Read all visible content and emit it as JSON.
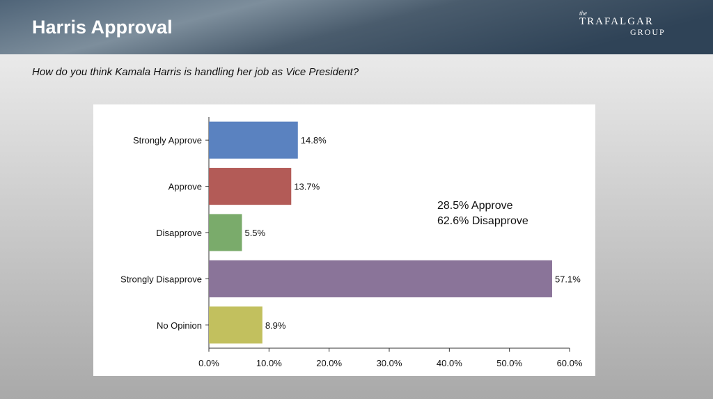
{
  "header": {
    "title": "Harris Approval",
    "logo": {
      "small": "the",
      "top": "TRAFALGAR",
      "bottom": "GROUP"
    }
  },
  "chart_data": {
    "type": "bar",
    "orientation": "horizontal",
    "subtitle": "How do you think Kamala Harris is handling her job as Vice President?",
    "categories": [
      "Strongly Approve",
      "Approve",
      "Disapprove",
      "Strongly Disapprove",
      "No Opinion"
    ],
    "values": [
      14.8,
      13.7,
      5.5,
      57.1,
      8.9
    ],
    "value_labels": [
      "14.8%",
      "13.7%",
      "5.5%",
      "57.1%",
      "8.9%"
    ],
    "colors": [
      "#5a82c0",
      "#b35b57",
      "#7aab6b",
      "#8a7499",
      "#c2c05e"
    ],
    "xlim": [
      0,
      60
    ],
    "xticks": [
      {
        "value": 0,
        "label": "0.0%"
      },
      {
        "value": 10,
        "label": "10.0%"
      },
      {
        "value": 20,
        "label": "20.0%"
      },
      {
        "value": 30,
        "label": "30.0%"
      },
      {
        "value": 40,
        "label": "40.0%"
      },
      {
        "value": 50,
        "label": "50.0%"
      },
      {
        "value": 60,
        "label": "60.0%"
      }
    ],
    "annotations": [
      "28.5% Approve",
      "62.6% Disapprove"
    ]
  }
}
